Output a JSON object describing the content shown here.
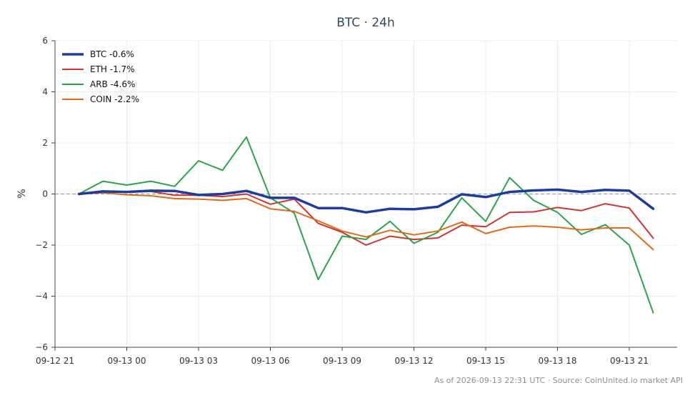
{
  "chart_data": {
    "type": "line",
    "title": "BTC · 24h",
    "xlabel": "",
    "ylabel": "%",
    "ylim": [
      -6,
      6
    ],
    "yticks": [
      -6,
      -4,
      -2,
      0,
      2,
      4,
      6
    ],
    "ytick_labels": [
      "−6",
      "−4",
      "−2",
      "0",
      "2",
      "4",
      "6"
    ],
    "x_start": "2026-09-12 21:00",
    "x_end": "2026-09-13 23:00",
    "xticks": [
      "2026-09-12 21:00",
      "2026-09-13 00:00",
      "2026-09-13 03:00",
      "2026-09-13 06:00",
      "2026-09-13 09:00",
      "2026-09-13 12:00",
      "2026-09-13 15:00",
      "2026-09-13 18:00",
      "2026-09-13 21:00"
    ],
    "xtick_labels": [
      "09-12 21",
      "09-13 00",
      "09-13 03",
      "09-13 06",
      "09-13 09",
      "09-13 12",
      "09-13 15",
      "09-13 18",
      "09-13 21"
    ],
    "x": [
      "2026-09-12 22:00",
      "2026-09-12 23:00",
      "2026-09-13 00:00",
      "2026-09-13 01:00",
      "2026-09-13 02:00",
      "2026-09-13 03:00",
      "2026-09-13 04:00",
      "2026-09-13 05:00",
      "2026-09-13 06:00",
      "2026-09-13 07:00",
      "2026-09-13 08:00",
      "2026-09-13 09:00",
      "2026-09-13 10:00",
      "2026-09-13 11:00",
      "2026-09-13 12:00",
      "2026-09-13 13:00",
      "2026-09-13 14:00",
      "2026-09-13 15:00",
      "2026-09-13 16:00",
      "2026-09-13 17:00",
      "2026-09-13 18:00",
      "2026-09-13 19:00",
      "2026-09-13 20:00",
      "2026-09-13 21:00",
      "2026-09-13 22:00"
    ],
    "grid": true,
    "reference_line": 0,
    "legend_position": "top-left",
    "series": [
      {
        "name": "BTC -0.6%",
        "color": "#1f3b9b",
        "emphasis": true,
        "values": [
          0.0,
          0.1,
          0.08,
          0.13,
          0.12,
          -0.04,
          0.0,
          0.12,
          -0.15,
          -0.15,
          -0.55,
          -0.55,
          -0.72,
          -0.58,
          -0.6,
          -0.5,
          -0.01,
          -0.12,
          0.08,
          0.14,
          0.17,
          0.08,
          0.16,
          0.13,
          -0.58
        ]
      },
      {
        "name": "ETH -1.7%",
        "color": "#d1322f",
        "values": [
          0.0,
          0.12,
          0.07,
          0.1,
          -0.05,
          -0.05,
          -0.1,
          0.0,
          -0.4,
          -0.2,
          -1.15,
          -1.5,
          -2.0,
          -1.65,
          -1.78,
          -1.72,
          -1.22,
          -1.28,
          -0.72,
          -0.7,
          -0.53,
          -0.65,
          -0.38,
          -0.55,
          -1.73
        ]
      },
      {
        "name": "ARB -4.6%",
        "color": "#2ca349",
        "values": [
          0.0,
          0.5,
          0.35,
          0.5,
          0.3,
          1.3,
          0.93,
          2.23,
          -0.15,
          -0.75,
          -3.35,
          -1.65,
          -1.78,
          -1.07,
          -1.93,
          -1.5,
          -0.15,
          -1.07,
          0.64,
          -0.25,
          -0.72,
          -1.58,
          -1.2,
          -2.0,
          -4.65
        ]
      },
      {
        "name": "COIN -2.2%",
        "color": "#e06a1b",
        "values": [
          0.0,
          0.05,
          -0.03,
          -0.07,
          -0.18,
          -0.2,
          -0.25,
          -0.18,
          -0.58,
          -0.68,
          -1.05,
          -1.45,
          -1.68,
          -1.42,
          -1.6,
          -1.45,
          -1.1,
          -1.55,
          -1.3,
          -1.25,
          -1.3,
          -1.4,
          -1.33,
          -1.33,
          -2.18
        ]
      }
    ]
  },
  "footer": {
    "text": "As of 2026-09-13 22:31 UTC · Source: CoinUnited.io market API"
  }
}
